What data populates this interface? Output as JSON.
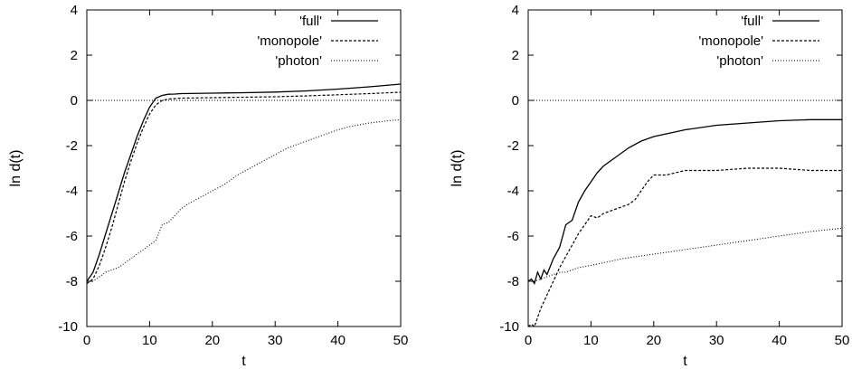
{
  "chart_data": [
    {
      "type": "line",
      "xlabel": "t",
      "ylabel": "ln d(t)",
      "xlim": [
        0,
        50
      ],
      "ylim": [
        -10,
        4
      ],
      "xticks": [
        0,
        10,
        20,
        30,
        40,
        50
      ],
      "yticks": [
        -10,
        -8,
        -6,
        -4,
        -2,
        0,
        2,
        4
      ],
      "reference_line": 0,
      "legend_position": "top-right",
      "series": [
        {
          "name": "'full'",
          "style": "solid",
          "x": [
            0,
            0.5,
            1,
            2,
            3,
            4,
            5,
            6,
            7,
            8,
            9,
            10,
            11,
            12,
            13,
            14,
            15,
            20,
            25,
            30,
            35,
            40,
            45,
            50
          ],
          "y": [
            -8.0,
            -7.8,
            -7.6,
            -6.8,
            -5.9,
            -5.0,
            -4.1,
            -3.2,
            -2.4,
            -1.6,
            -0.9,
            -0.3,
            0.1,
            0.22,
            0.27,
            0.28,
            0.3,
            0.32,
            0.34,
            0.37,
            0.42,
            0.5,
            0.6,
            0.72
          ]
        },
        {
          "name": "'monopole'",
          "style": "dashed",
          "x": [
            0,
            0.5,
            1,
            2,
            3,
            4,
            5,
            6,
            7,
            8,
            9,
            10,
            11,
            12,
            13,
            14,
            15,
            20,
            25,
            30,
            35,
            40,
            45,
            50
          ],
          "y": [
            -8.1,
            -8.0,
            -7.9,
            -7.3,
            -6.5,
            -5.6,
            -4.6,
            -3.6,
            -2.7,
            -1.9,
            -1.2,
            -0.6,
            -0.2,
            0.0,
            0.06,
            0.08,
            0.1,
            0.12,
            0.14,
            0.16,
            0.2,
            0.25,
            0.3,
            0.36
          ]
        },
        {
          "name": "'photon'",
          "style": "dotted",
          "x": [
            0,
            1,
            2,
            3,
            4,
            5,
            6,
            7,
            8,
            9,
            10,
            11,
            12,
            13,
            14,
            15,
            16,
            18,
            20,
            22,
            24,
            26,
            28,
            30,
            32,
            35,
            38,
            40,
            42,
            45,
            48,
            50
          ],
          "y": [
            -8.0,
            -8.0,
            -7.8,
            -7.6,
            -7.5,
            -7.4,
            -7.2,
            -7.0,
            -6.8,
            -6.6,
            -6.4,
            -6.2,
            -5.5,
            -5.4,
            -5.1,
            -4.8,
            -4.6,
            -4.3,
            -4.0,
            -3.7,
            -3.3,
            -3.0,
            -2.7,
            -2.4,
            -2.1,
            -1.8,
            -1.5,
            -1.3,
            -1.15,
            -1.0,
            -0.9,
            -0.85
          ]
        }
      ]
    },
    {
      "type": "line",
      "xlabel": "t",
      "ylabel": "ln d(t)",
      "xlim": [
        0,
        50
      ],
      "ylim": [
        -10,
        4
      ],
      "xticks": [
        0,
        10,
        20,
        30,
        40,
        50
      ],
      "yticks": [
        -10,
        -8,
        -6,
        -4,
        -2,
        0,
        2,
        4
      ],
      "reference_line": 0,
      "legend_position": "top-right",
      "series": [
        {
          "name": "'full'",
          "style": "solid",
          "x": [
            0,
            0.5,
            1,
            1.5,
            2,
            2.5,
            3,
            4,
            5,
            6,
            7,
            8,
            9,
            10,
            11,
            12,
            14,
            16,
            18,
            20,
            25,
            30,
            35,
            40,
            45,
            50
          ],
          "y": [
            -8.0,
            -7.9,
            -8.1,
            -7.6,
            -7.9,
            -7.5,
            -7.7,
            -7.0,
            -6.5,
            -5.5,
            -5.3,
            -4.5,
            -4.0,
            -3.6,
            -3.2,
            -2.9,
            -2.5,
            -2.1,
            -1.8,
            -1.6,
            -1.3,
            -1.1,
            -1.0,
            -0.9,
            -0.85,
            -0.85
          ]
        },
        {
          "name": "'monopole'",
          "style": "dashed",
          "x": [
            0,
            0.5,
            1,
            1.5,
            2,
            3,
            4,
            5,
            6,
            7,
            8,
            9,
            10,
            11,
            12,
            14,
            16,
            17,
            18,
            19,
            20,
            22,
            25,
            30,
            35,
            40,
            45,
            50
          ],
          "y": [
            -10.0,
            -9.9,
            -10.0,
            -9.6,
            -9.2,
            -8.6,
            -8.0,
            -7.4,
            -6.9,
            -6.4,
            -5.9,
            -5.5,
            -5.1,
            -5.2,
            -5.0,
            -4.8,
            -4.6,
            -4.4,
            -4.0,
            -3.6,
            -3.3,
            -3.3,
            -3.1,
            -3.1,
            -3.0,
            -3.0,
            -3.1,
            -3.1
          ]
        },
        {
          "name": "'photon'",
          "style": "dotted",
          "x": [
            0,
            1,
            2,
            3,
            4,
            5,
            6,
            8,
            10,
            15,
            20,
            25,
            30,
            35,
            40,
            45,
            50
          ],
          "y": [
            -8.0,
            -8.0,
            -7.9,
            -7.8,
            -7.7,
            -7.6,
            -7.6,
            -7.4,
            -7.3,
            -7.0,
            -6.8,
            -6.6,
            -6.4,
            -6.2,
            -6.0,
            -5.8,
            -5.65
          ]
        }
      ]
    }
  ]
}
